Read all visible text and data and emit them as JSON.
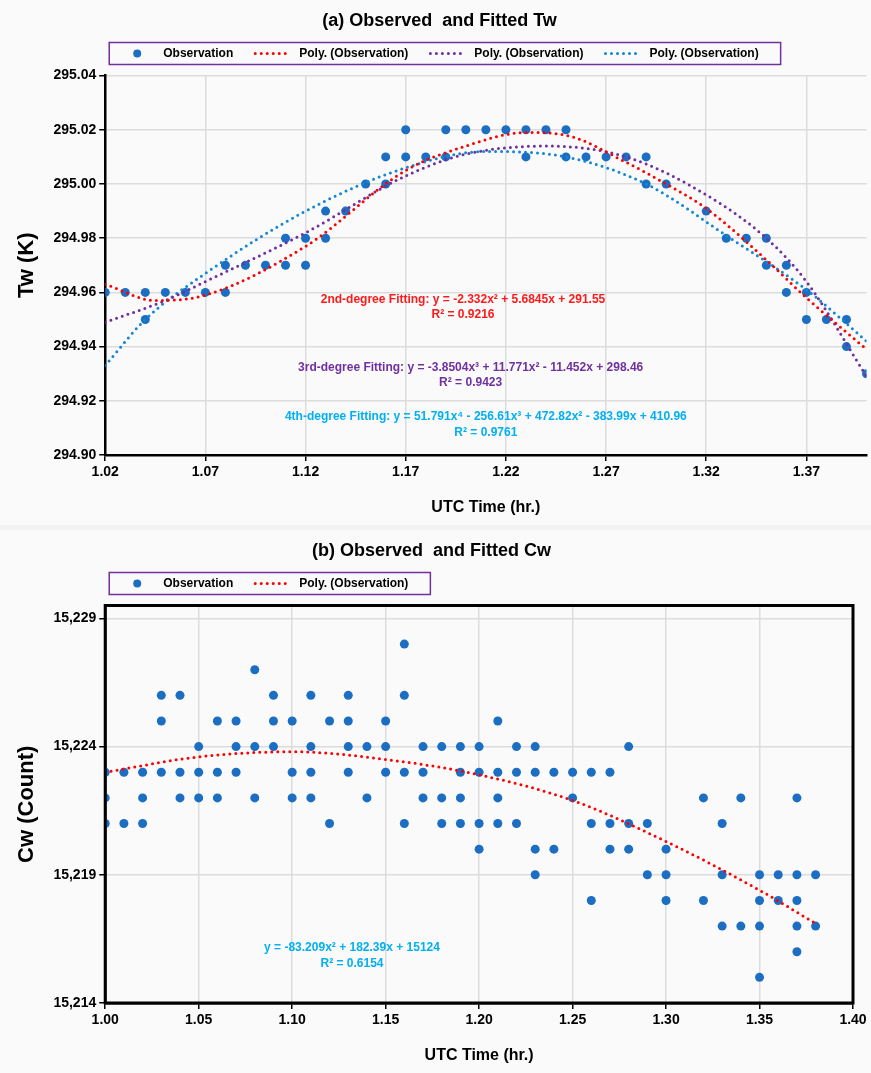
{
  "chart_data": [
    {
      "type": "scatter",
      "title": "(a) Observed  and Fitted Tw",
      "xlabel": "UTC Time (hr.)",
      "ylabel": "Tw (K)",
      "xlim": [
        1.02,
        1.4
      ],
      "xticks": [
        1.02,
        1.07,
        1.12,
        1.17,
        1.22,
        1.27,
        1.32,
        1.37
      ],
      "ylim": [
        294.9,
        295.04
      ],
      "yticks": [
        {
          "value": 294.9,
          "label": "294.90"
        },
        {
          "value": 294.92,
          "label": "294.92"
        },
        {
          "value": 294.94,
          "label": "294.94"
        },
        {
          "value": 294.96,
          "label": "294.96"
        },
        {
          "value": 294.98,
          "label": "294.98"
        },
        {
          "value": 295.0,
          "label": "295.00"
        },
        {
          "value": 295.02,
          "label": "295.02"
        },
        {
          "value": 295.04,
          "label": "295.04"
        }
      ],
      "grid": true,
      "legend": "top",
      "series": [
        {
          "name": "Observation",
          "type": "scatter",
          "marker": "circle",
          "color": "#1b6ec2",
          "x": [
            1.02,
            1.03,
            1.04,
            1.04,
            1.05,
            1.06,
            1.07,
            1.08,
            1.08,
            1.09,
            1.1,
            1.11,
            1.11,
            1.12,
            1.12,
            1.13,
            1.13,
            1.14,
            1.15,
            1.16,
            1.16,
            1.17,
            1.17,
            1.18,
            1.19,
            1.19,
            1.2,
            1.21,
            1.22,
            1.23,
            1.23,
            1.24,
            1.25,
            1.25,
            1.26,
            1.27,
            1.28,
            1.29,
            1.29,
            1.3,
            1.32,
            1.33,
            1.34,
            1.35,
            1.35,
            1.36,
            1.36,
            1.37,
            1.37,
            1.38,
            1.39,
            1.39,
            1.4
          ],
          "values": [
            294.96,
            294.96,
            294.96,
            294.95,
            294.96,
            294.96,
            294.96,
            294.97,
            294.96,
            294.97,
            294.97,
            294.98,
            294.97,
            294.98,
            294.97,
            294.99,
            294.98,
            294.99,
            295.0,
            295.01,
            295.0,
            295.02,
            295.01,
            295.01,
            295.02,
            295.01,
            295.02,
            295.02,
            295.02,
            295.02,
            295.01,
            295.02,
            295.02,
            295.01,
            295.01,
            295.01,
            295.01,
            295.01,
            295.0,
            295.0,
            294.99,
            294.98,
            294.98,
            294.98,
            294.97,
            294.97,
            294.96,
            294.96,
            294.95,
            294.95,
            294.95,
            294.94,
            294.93
          ]
        },
        {
          "name": "Poly. (Observation)",
          "type": "line",
          "marker": "none",
          "line_style": "dotted",
          "color": "#ff0000",
          "x": [
            1.02,
            1.045,
            1.07,
            1.12,
            1.17,
            1.2,
            1.23,
            1.25,
            1.28,
            1.3,
            1.32,
            1.35,
            1.37,
            1.4
          ],
          "values": [
            294.963,
            294.957,
            294.959,
            294.977,
            295.005,
            295.014,
            295.019,
            295.018,
            295.008,
            295.0,
            294.991,
            294.972,
            294.958,
            294.939
          ]
        },
        {
          "name": "Poly. (Observation)",
          "type": "line",
          "marker": "none",
          "line_style": "dotted",
          "color": "#7030a0",
          "x": [
            1.02,
            1.05,
            1.07,
            1.12,
            1.17,
            1.2,
            1.24,
            1.28,
            1.32,
            1.35,
            1.37,
            1.4
          ],
          "values": [
            294.949,
            294.957,
            294.964,
            294.982,
            295.003,
            295.011,
            295.014,
            295.01,
            294.996,
            294.98,
            294.964,
            294.929
          ]
        },
        {
          "name": "Poly. (Observation)",
          "type": "line",
          "marker": "none",
          "line_style": "dotted",
          "color": "#1287d4",
          "x": [
            1.02,
            1.04,
            1.07,
            1.12,
            1.17,
            1.21,
            1.25,
            1.29,
            1.33,
            1.37,
            1.4
          ],
          "values": [
            294.933,
            294.95,
            294.967,
            294.99,
            295.006,
            295.012,
            295.01,
            295.0,
            294.981,
            294.961,
            294.942
          ]
        }
      ],
      "annotations": [
        "2nd-degree Fitting: y = -2.332x² + 5.6845x + 291.55",
        "R² = 0.9216",
        "3rd-degree Fitting: y = -3.8504x³ + 11.771x² - 11.452x + 298.46",
        "R² = 0.9423",
        "4th-degree Fitting: y = 51.791x⁴ - 256.61x³ + 472.82x² - 383.99x + 410.96",
        "R² = 0.9761"
      ]
    },
    {
      "type": "scatter",
      "title": "(b) Observed  and Fitted Cw",
      "xlabel": "UTC Time (hr.)",
      "ylabel": "Cw (Count)",
      "xlim": [
        1.0,
        1.4
      ],
      "xticks": [
        {
          "value": 1.0,
          "label": "1.00"
        },
        {
          "value": 1.05,
          "label": "1.05"
        },
        {
          "value": 1.1,
          "label": "1.10"
        },
        {
          "value": 1.15,
          "label": "1.15"
        },
        {
          "value": 1.2,
          "label": "1.20"
        },
        {
          "value": 1.25,
          "label": "1.25"
        },
        {
          "value": 1.3,
          "label": "1.30"
        },
        {
          "value": 1.35,
          "label": "1.35"
        },
        {
          "value": 1.4,
          "label": "1.40"
        }
      ],
      "ylim": [
        15214,
        15229.5
      ],
      "yticks": [
        {
          "value": 15214,
          "label": "15,214"
        },
        {
          "value": 15219,
          "label": "15,219"
        },
        {
          "value": 15224,
          "label": "15,224"
        },
        {
          "value": 15229,
          "label": "15,229"
        }
      ],
      "grid": true,
      "legend": "top",
      "series": [
        {
          "name": "Observation",
          "type": "scatter",
          "marker": "circle",
          "color": "#1b6ec2",
          "x": [
            1.0,
            1.0,
            1.0,
            1.01,
            1.01,
            1.02,
            1.02,
            1.02,
            1.03,
            1.03,
            1.03,
            1.04,
            1.04,
            1.04,
            1.05,
            1.05,
            1.05,
            1.06,
            1.06,
            1.06,
            1.07,
            1.07,
            1.07,
            1.08,
            1.08,
            1.08,
            1.09,
            1.09,
            1.09,
            1.1,
            1.1,
            1.1,
            1.11,
            1.11,
            1.11,
            1.11,
            1.12,
            1.12,
            1.13,
            1.13,
            1.13,
            1.13,
            1.14,
            1.14,
            1.15,
            1.15,
            1.15,
            1.16,
            1.16,
            1.16,
            1.16,
            1.17,
            1.17,
            1.17,
            1.18,
            1.18,
            1.18,
            1.19,
            1.19,
            1.19,
            1.19,
            1.2,
            1.2,
            1.2,
            1.2,
            1.21,
            1.21,
            1.21,
            1.21,
            1.22,
            1.22,
            1.22,
            1.23,
            1.23,
            1.23,
            1.23,
            1.24,
            1.24,
            1.25,
            1.25,
            1.26,
            1.26,
            1.26,
            1.27,
            1.27,
            1.27,
            1.28,
            1.28,
            1.28,
            1.29,
            1.29,
            1.3,
            1.3,
            1.3,
            1.32,
            1.32,
            1.33,
            1.33,
            1.33,
            1.34,
            1.34,
            1.35,
            1.35,
            1.35,
            1.35,
            1.36,
            1.36,
            1.37,
            1.37,
            1.37,
            1.37,
            1.37,
            1.38,
            1.38
          ],
          "values": [
            15223,
            15222,
            15221,
            15223,
            15221,
            15223,
            15222,
            15221,
            15226,
            15225,
            15223,
            15226,
            15223,
            15222,
            15224,
            15223,
            15222,
            15225,
            15223,
            15222,
            15225,
            15224,
            15223,
            15227,
            15224,
            15222,
            15226,
            15225,
            15224,
            15225,
            15223,
            15222,
            15226,
            15224,
            15223,
            15222,
            15225,
            15221,
            15226,
            15225,
            15224,
            15223,
            15224,
            15222,
            15225,
            15224,
            15223,
            15228,
            15226,
            15223,
            15221,
            15224,
            15223,
            15222,
            15224,
            15222,
            15221,
            15224,
            15223,
            15222,
            15221,
            15224,
            15223,
            15221,
            15220,
            15225,
            15223,
            15222,
            15221,
            15224,
            15223,
            15221,
            15224,
            15223,
            15220,
            15219,
            15223,
            15220,
            15223,
            15222,
            15223,
            15221,
            15218,
            15223,
            15221,
            15220,
            15224,
            15221,
            15220,
            15221,
            15219,
            15220,
            15219,
            15218,
            15222,
            15218,
            15221,
            15219,
            15217,
            15222,
            15217,
            15219,
            15218,
            15217,
            15215,
            15219,
            15218,
            15222,
            15219,
            15218,
            15217,
            15216,
            15219,
            15217
          ]
        },
        {
          "name": "Poly. (Observation)",
          "type": "line",
          "marker": "none",
          "line_style": "dotted",
          "color": "#ff0000",
          "x": [
            1.0,
            1.05,
            1.1,
            1.15,
            1.2,
            1.25,
            1.3,
            1.35,
            1.38
          ],
          "values": [
            15223.0,
            15223.6,
            15223.8,
            15223.5,
            15222.9,
            15221.9,
            15220.3,
            15218.4,
            15217.1
          ]
        }
      ],
      "annotations": [
        "y = -83.209x² + 182.39x + 15124",
        "R² = 0.6154"
      ]
    }
  ]
}
